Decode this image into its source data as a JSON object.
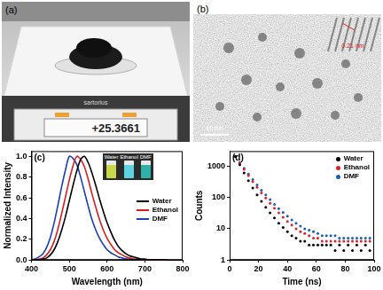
{
  "panels": {
    "a": {
      "panel_label": "(a)",
      "brand": "sartorius",
      "reading": "+25.3661"
    },
    "b": {
      "panel_label": "(b)",
      "scale_bar": "10 nm",
      "inset_scale_bar": "0.21 nm"
    }
  },
  "chart_data": [
    {
      "type": "line",
      "panel_label": "(c)",
      "xlabel": "Wavelength (nm)",
      "ylabel": "Normalized Intensity",
      "x": [
        400,
        410,
        420,
        430,
        440,
        450,
        460,
        470,
        480,
        490,
        500,
        510,
        520,
        530,
        540,
        550,
        560,
        570,
        580,
        590,
        600,
        610,
        620,
        630,
        640,
        650,
        660,
        670,
        680,
        690,
        700,
        710,
        720,
        730,
        740,
        750,
        760
      ],
      "series": [
        {
          "name": "Water",
          "color": "#000000",
          "line_style": "solid",
          "values": [
            0,
            0,
            0,
            0.01,
            0.02,
            0.05,
            0.1,
            0.18,
            0.29,
            0.42,
            0.57,
            0.72,
            0.86,
            0.97,
            1.0,
            0.94,
            0.84,
            0.72,
            0.59,
            0.47,
            0.36,
            0.27,
            0.19,
            0.13,
            0.09,
            0.06,
            0.04,
            0.03,
            0.02,
            0.01,
            0.01,
            0,
            0,
            0,
            0,
            0,
            0
          ]
        },
        {
          "name": "Ethanol",
          "color": "#d61f1f",
          "line_style": "solid",
          "values": [
            0,
            0,
            0.01,
            0.02,
            0.05,
            0.1,
            0.18,
            0.3,
            0.45,
            0.61,
            0.77,
            0.91,
            1.0,
            0.97,
            0.9,
            0.78,
            0.64,
            0.51,
            0.39,
            0.29,
            0.21,
            0.15,
            0.1,
            0.07,
            0.05,
            0.03,
            0.02,
            0.01,
            0.01,
            0,
            0,
            0,
            0,
            0,
            0,
            0,
            0
          ]
        },
        {
          "name": "DMF",
          "color": "#1c3fb8",
          "line_style": "solid",
          "values": [
            0,
            0.01,
            0.03,
            0.06,
            0.12,
            0.22,
            0.36,
            0.53,
            0.71,
            0.87,
            1.0,
            0.98,
            0.92,
            0.8,
            0.66,
            0.52,
            0.39,
            0.29,
            0.21,
            0.15,
            0.1,
            0.07,
            0.05,
            0.03,
            0.02,
            0.01,
            0.01,
            0,
            0,
            0,
            0,
            0,
            0,
            0,
            0,
            0,
            0
          ]
        }
      ],
      "inset_labels": [
        "Water",
        "Ethanol",
        "DMF"
      ],
      "xlim": [
        400,
        800
      ],
      "xticks": [
        400,
        500,
        600,
        700,
        800
      ],
      "ylim": [
        0,
        1.05
      ],
      "yticks": [
        {
          "value": 0,
          "label": "0.0"
        },
        {
          "value": 0.2,
          "label": "0.2"
        },
        {
          "value": 0.4,
          "label": "0.4"
        },
        {
          "value": 0.6,
          "label": "0.6"
        },
        {
          "value": 0.8,
          "label": "0.8"
        },
        {
          "value": 1,
          "label": "1.0"
        }
      ],
      "grid": false,
      "legend": "right"
    },
    {
      "type": "scatter",
      "panel_label": "(d)",
      "xlabel": "Time (ns)",
      "ylabel": "Counts",
      "x": [
        4,
        7,
        10,
        13,
        16,
        19,
        22,
        25,
        28,
        31,
        34,
        37,
        40,
        43,
        46,
        49,
        52,
        55,
        58,
        61,
        64,
        67,
        70,
        73,
        76,
        79,
        82,
        85,
        88,
        91,
        94,
        97
      ],
      "series": [
        {
          "name": "Water",
          "color": "#000000",
          "marker": "circle",
          "values": [
            2000,
            1100,
            600,
            340,
            200,
            120,
            75,
            48,
            32,
            22,
            15,
            11,
            8,
            6,
            5,
            4,
            4,
            3,
            3,
            3,
            3,
            3,
            3,
            2,
            3,
            2,
            3,
            2,
            3,
            2,
            3,
            2
          ]
        },
        {
          "name": "Ethanol",
          "color": "#e0202a",
          "marker": "circle",
          "values": [
            2000,
            1250,
            780,
            500,
            320,
            210,
            140,
            95,
            65,
            45,
            32,
            23,
            17,
            13,
            10,
            8,
            7,
            6,
            5,
            5,
            4,
            4,
            4,
            4,
            4,
            4,
            4,
            4,
            4,
            4,
            4,
            4
          ]
        },
        {
          "name": "DMF",
          "color": "#1a5fb4",
          "marker": "circle",
          "values": [
            2000,
            1300,
            850,
            560,
            370,
            250,
            170,
            120,
            85,
            60,
            44,
            33,
            25,
            19,
            15,
            12,
            10,
            9,
            8,
            7,
            6,
            6,
            6,
            6,
            5,
            5,
            5,
            5,
            5,
            5,
            5,
            5
          ]
        }
      ],
      "xlim": [
        0,
        100
      ],
      "xticks": [
        0,
        20,
        40,
        60,
        80,
        100
      ],
      "ylim": [
        1,
        3000
      ],
      "yticks": [
        1,
        10,
        100,
        1000
      ],
      "log": "y",
      "grid": false,
      "legend": "upper right"
    }
  ]
}
